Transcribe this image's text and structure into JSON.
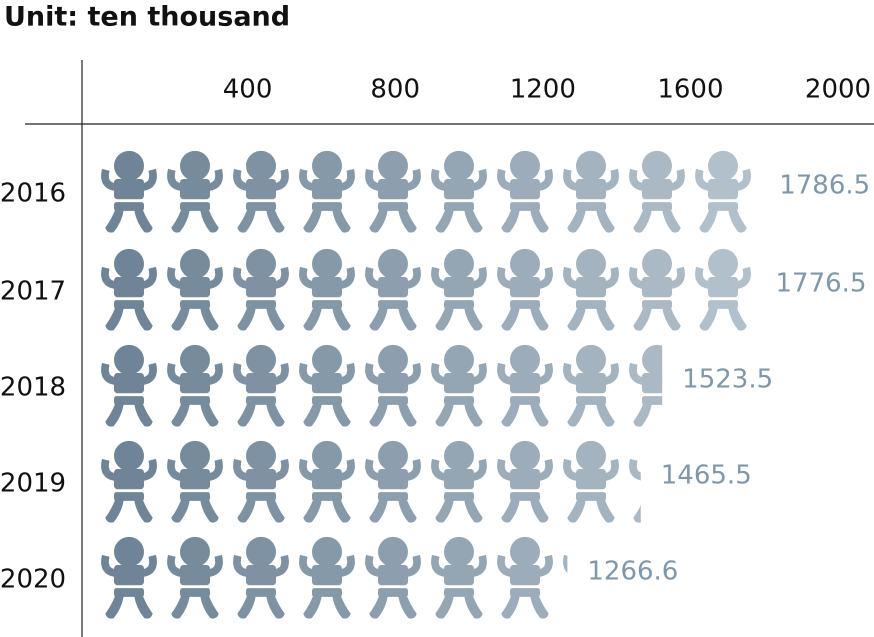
{
  "chart_data": {
    "type": "pictograph",
    "title": "Unit: ten thousand",
    "categories": [
      "2016",
      "2017",
      "2018",
      "2019",
      "2020"
    ],
    "values": [
      1786.5,
      1776.5,
      1523.5,
      1465.5,
      1266.6
    ],
    "xlim": [
      0,
      2000
    ],
    "xticks": [
      400,
      800,
      1200,
      1600,
      2000
    ],
    "grid": false
  }
}
